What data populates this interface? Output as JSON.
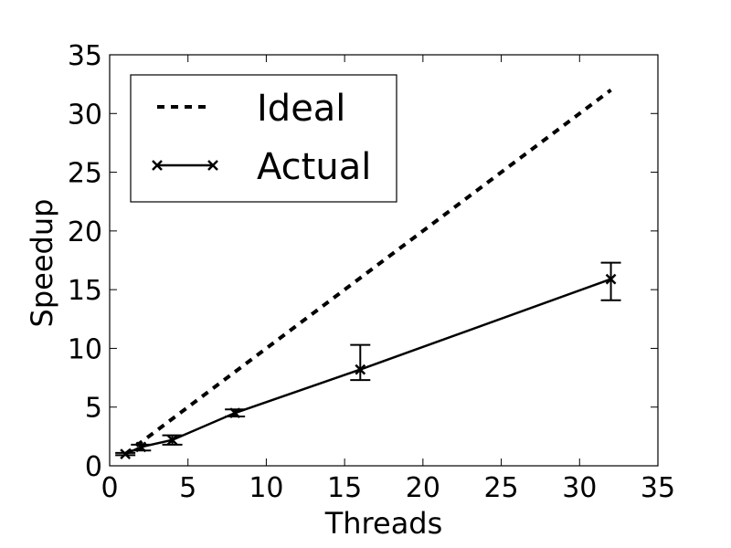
{
  "chart_data": {
    "type": "line",
    "xlabel": "Threads",
    "ylabel": "Speedup",
    "xlim": [
      0,
      35
    ],
    "ylim": [
      0,
      35
    ],
    "xticks": [
      0,
      5,
      10,
      15,
      20,
      25,
      30,
      35
    ],
    "yticks": [
      0,
      5,
      10,
      15,
      20,
      25,
      30,
      35
    ],
    "grid": false,
    "legend_position": "top-left",
    "series": [
      {
        "name": "Ideal",
        "style": "dashed",
        "color": "#000000",
        "x": [
          1,
          32
        ],
        "y": [
          1,
          32
        ]
      },
      {
        "name": "Actual",
        "style": "solid",
        "marker": "x",
        "color": "#000000",
        "x": [
          1,
          2,
          4,
          8,
          16,
          32
        ],
        "y": [
          1.0,
          1.6,
          2.2,
          4.5,
          8.2,
          15.9
        ],
        "err_low": [
          0.9,
          1.3,
          1.8,
          4.2,
          7.3,
          14.1
        ],
        "err_high": [
          1.1,
          1.8,
          2.6,
          4.8,
          10.3,
          17.3
        ]
      }
    ]
  }
}
